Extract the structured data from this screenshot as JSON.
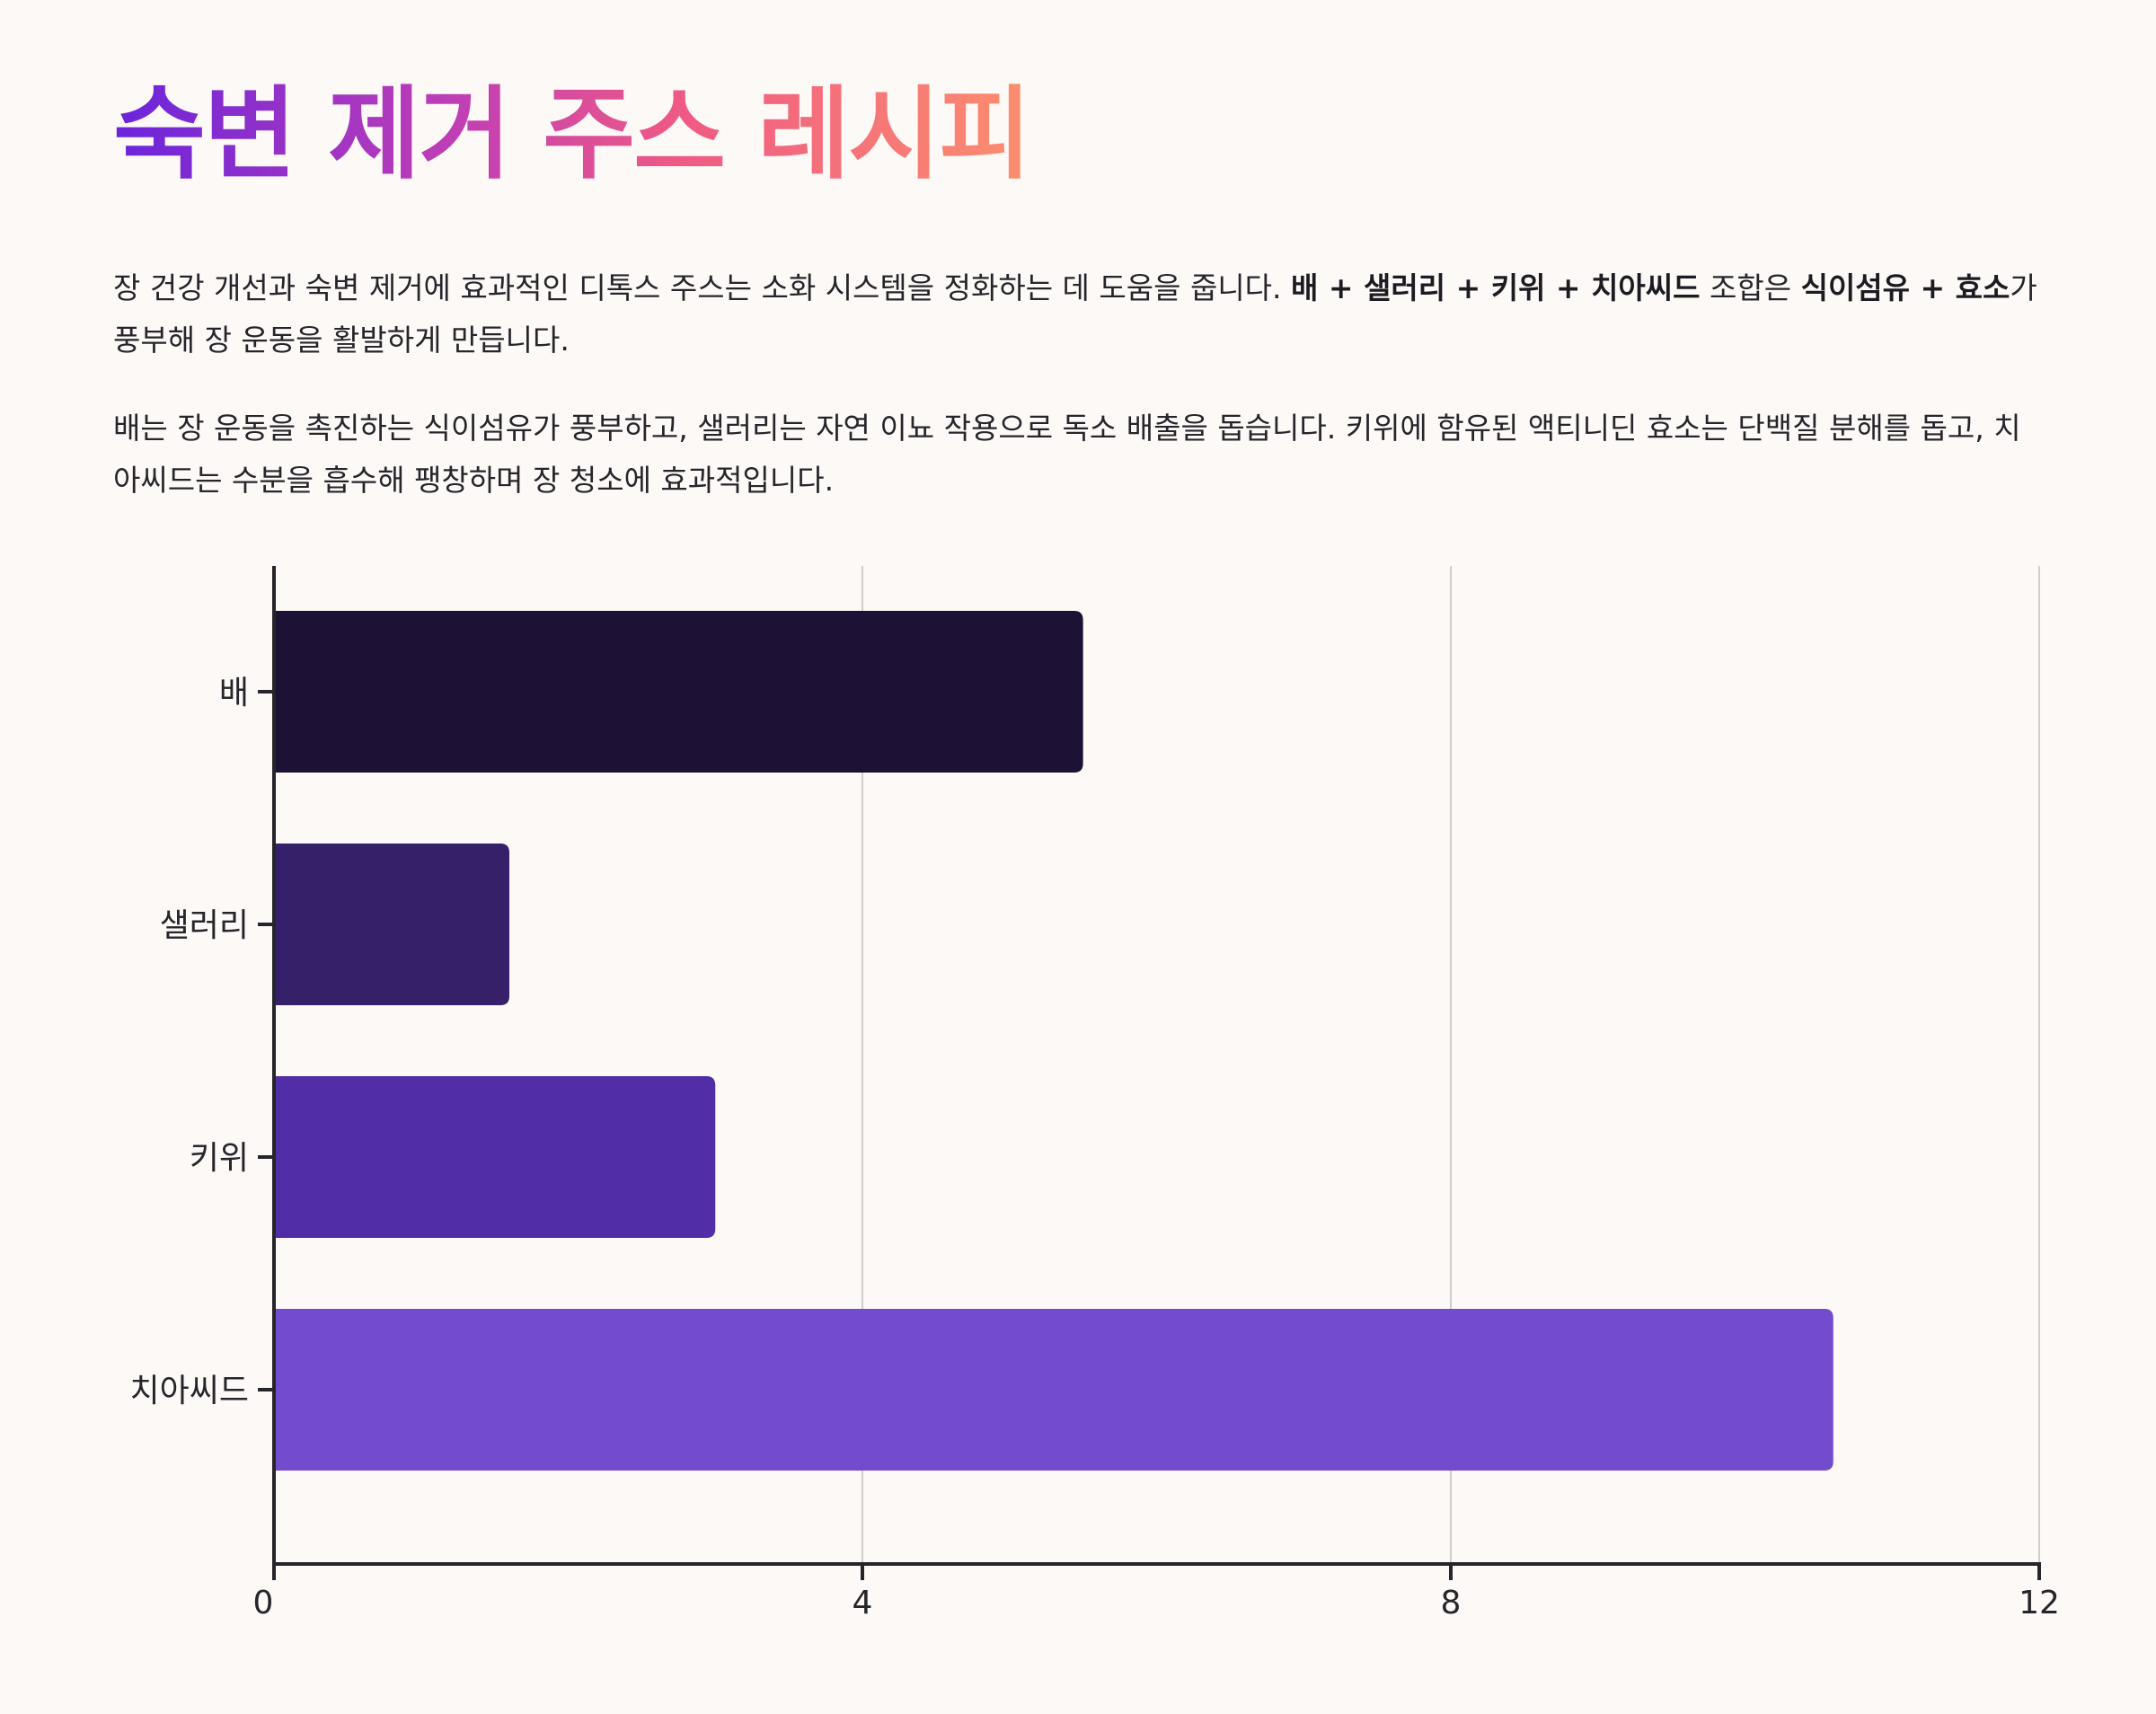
{
  "title": "숙변 제거 주스 레시피",
  "intro": {
    "p1": {
      "t1": "장 건강 개선과 숙변 제거에 효과적인 디톡스 주스는 소화 시스템을 정화하는 데 도움을 줍니다. ",
      "b1": "배 + 샐러리 + 키위 + 치아씨드",
      "t2": " 조합은 ",
      "b2": "식이섬유 + 효소",
      "t3": "가 풍부해 장 운동을 활발하게 만듭니다."
    },
    "p2": "배는 장 운동을 촉진하는 식이섬유가 풍부하고, 샐러리는 자연 이뇨 작용으로 독소 배출을 돕습니다. 키위에 함유된 액티니딘 효소는 단백질 분해를 돕고, 치아씨드는 수분을 흡수해 팽창하며 장 청소에 효과적입니다."
  },
  "colors": {
    "bars": [
      "#1d1136",
      "#36206a",
      "#512da8",
      "#734cce"
    ],
    "axis": "#26252b",
    "grid": "#cfcfcf"
  },
  "chart_data": {
    "type": "bar",
    "orientation": "horizontal",
    "categories": [
      "배",
      "샐러리",
      "키위",
      "치아씨드"
    ],
    "values": [
      5.5,
      1.6,
      3.0,
      10.6
    ],
    "xlim": [
      0,
      12
    ],
    "xticks": [
      0,
      4,
      8,
      12
    ],
    "grid": true,
    "title": "",
    "xlabel": "",
    "ylabel": ""
  }
}
